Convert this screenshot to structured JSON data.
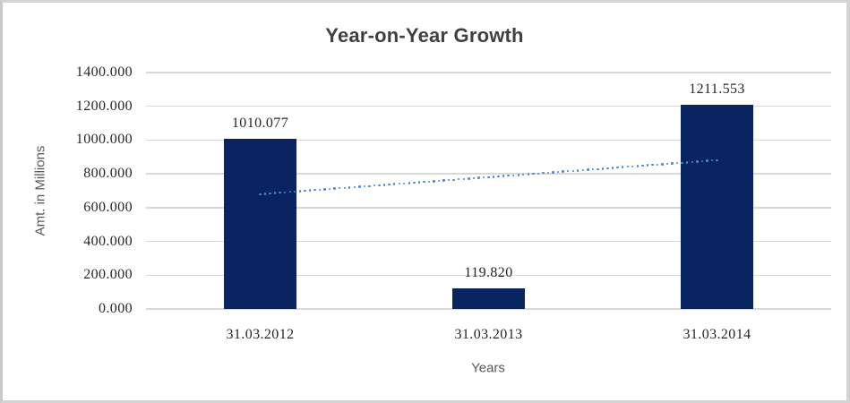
{
  "chart": {
    "title": "Year-on-Year Growth",
    "y_axis_title": "Amt. in Millions",
    "x_axis_title": "Years",
    "colors": {
      "bar_fill": "#0a2462",
      "trendline": "#4f87c7",
      "gridline": "#d9d9d9",
      "title_text": "#404040",
      "axis_title_text": "#595959",
      "tick_text": "#262626",
      "frame_border": "#d4d4d4",
      "background": "#ffffff"
    }
  },
  "chart_data": {
    "type": "bar",
    "title": "Year-on-Year Growth",
    "categories": [
      "31.03.2012",
      "31.03.2013",
      "31.03.2014"
    ],
    "values": [
      1010.077,
      119.82,
      1211.553
    ],
    "data_labels": [
      "1010.077",
      "119.820",
      "1211.553"
    ],
    "xlabel": "Years",
    "ylabel": "Amt. in Millions",
    "ylim": [
      0,
      1400
    ],
    "ytick_step": 200,
    "ytick_labels": [
      "0.000",
      "200.000",
      "400.000",
      "600.000",
      "800.000",
      "1000.000",
      "1200.000",
      "1400.000"
    ],
    "grid": true,
    "legend": false,
    "trendline": {
      "type": "linear",
      "style": "dotted",
      "start_value": 680,
      "end_value": 881
    }
  }
}
